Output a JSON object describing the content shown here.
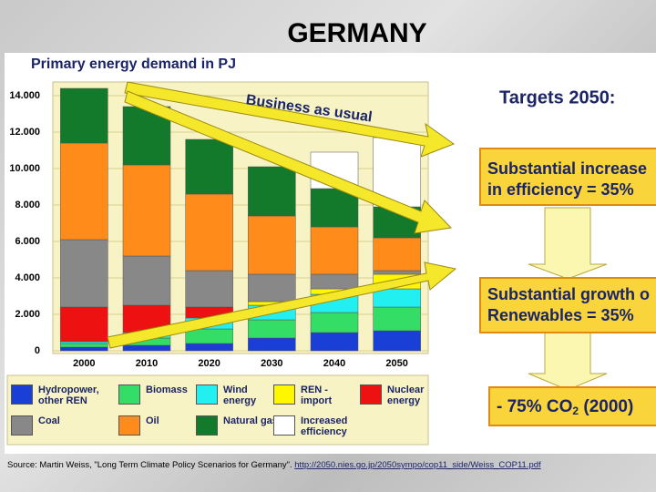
{
  "title": "GERMANY",
  "chart_data": {
    "type": "stacked_bar",
    "title": "Primary energy demand in PJ",
    "annotation": "Business as usual",
    "categories": [
      "2000",
      "2010",
      "2020",
      "2030",
      "2040",
      "2050"
    ],
    "series": [
      {
        "name": "Hydropower, other REN",
        "color": "#1a3fd6",
        "values": [
          200,
          300,
          400,
          700,
          1000,
          1100
        ]
      },
      {
        "name": "Biomass",
        "color": "#33dd66",
        "values": [
          200,
          400,
          800,
          1000,
          1100,
          1300
        ]
      },
      {
        "name": "Wind energy",
        "color": "#22f0f0",
        "values": [
          100,
          300,
          600,
          800,
          1000,
          1000
        ]
      },
      {
        "name": "REN - import",
        "color": "#fff700",
        "values": [
          0,
          0,
          0,
          200,
          300,
          800
        ]
      },
      {
        "name": "Nuclear energy",
        "color": "#ee1111",
        "values": [
          1900,
          1500,
          600,
          0,
          0,
          0
        ]
      },
      {
        "name": "Coal",
        "color": "#888888",
        "values": [
          3700,
          2700,
          2000,
          1500,
          800,
          200
        ]
      },
      {
        "name": "Oil",
        "color": "#ff8c1a",
        "values": [
          5300,
          5000,
          4200,
          3200,
          2600,
          1800
        ]
      },
      {
        "name": "Natural gas",
        "color": "#127a2a",
        "values": [
          3000,
          3200,
          3000,
          2700,
          2100,
          1700
        ]
      },
      {
        "name": "Increased efficiency",
        "color": "#ffffff",
        "values": [
          0,
          0,
          0,
          0,
          2000,
          3800
        ]
      }
    ],
    "ylim": [
      0,
      14000
    ],
    "yticks": [
      0,
      {
        "value": 2000,
        "label": "2.000"
      },
      {
        "value": 4000,
        "label": "4.000"
      },
      {
        "value": 6000,
        "label": "6.000"
      },
      {
        "value": 8000,
        "label": "8.000"
      },
      {
        "value": 10000,
        "label": "10.000"
      },
      {
        "value": 12000,
        "label": "12.000"
      },
      {
        "value": 14000,
        "label": "14.000"
      }
    ],
    "grid": true
  },
  "targets": {
    "heading": "Targets 2050:",
    "box1": [
      "Substantial increase",
      "in efficiency = 35%"
    ],
    "box2": [
      "Substantial growth o",
      "Renewables = 35%"
    ],
    "box3": [
      "- 75% CO",
      "2",
      " (2000)"
    ]
  },
  "source": {
    "text": "Source: Martin Weiss, \"Long Term Climate Policy Scenarios for Germany\". ",
    "url": "http://2050.nies.go.jp/2050sympo/cop11_side/Weiss_COP11.pdf"
  }
}
